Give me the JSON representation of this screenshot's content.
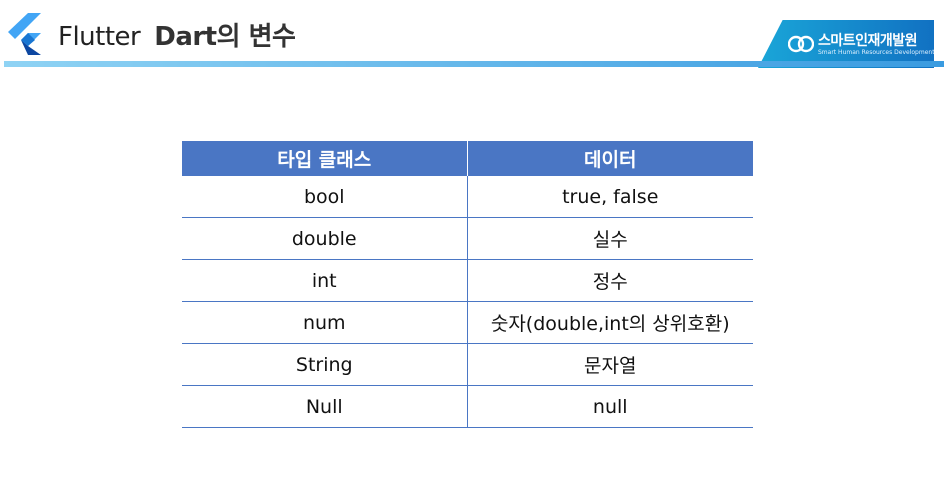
{
  "header": {
    "title_main": "Flutter",
    "title_sub": "Dart의 변수",
    "brand_name": "스마트인재개발원",
    "brand_sub": "Smart Human Resources Development",
    "accent_color": "#3a9be0",
    "logo_icon": "flutter-logo-icon"
  },
  "table": {
    "headers": [
      "타입 클래스",
      "데이터"
    ],
    "rows": [
      [
        "bool",
        "true, false"
      ],
      [
        "double",
        "실수"
      ],
      [
        "int",
        "정수"
      ],
      [
        "num",
        "숫자(double,int의 상위호환)"
      ],
      [
        "String",
        "문자열"
      ],
      [
        "Null",
        "null"
      ]
    ],
    "header_color": "#4a76c4"
  }
}
